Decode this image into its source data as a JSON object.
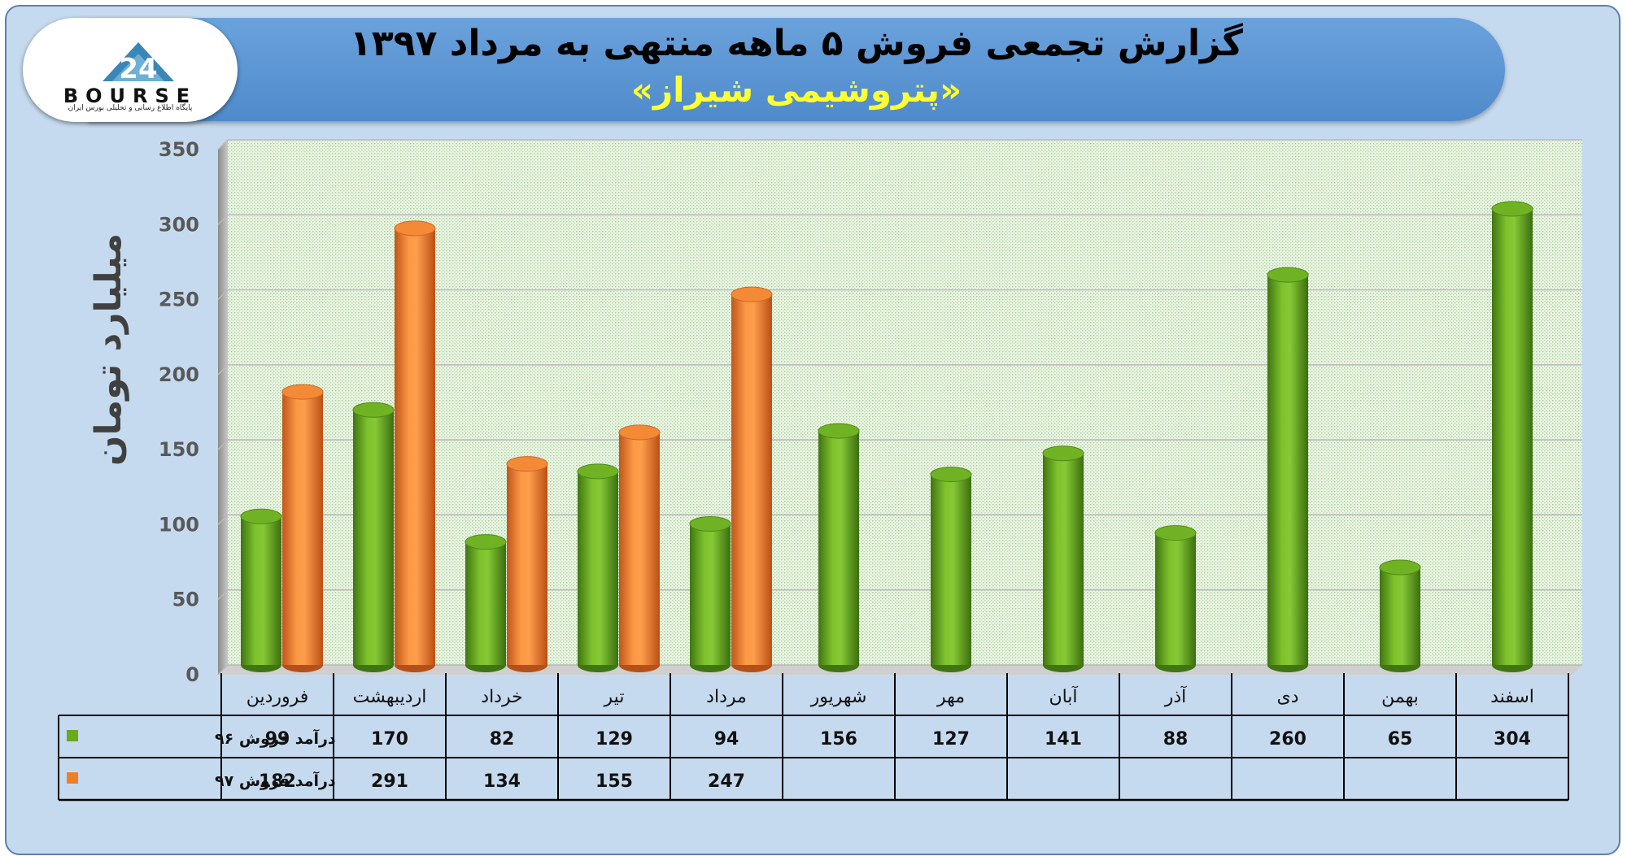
{
  "header": {
    "title": "گزارش تجمعی فروش ۵ ماهه منتهی به مرداد ۱۳۹۷",
    "subtitle": "«پتروشیمی شیراز»"
  },
  "logo": {
    "text": "BOURSE",
    "subtitle": "پایگاه اطلاع رسانی و تحلیلی بورس ایران"
  },
  "colors": {
    "series_96": "#6aaa1e",
    "series_97": "#f07e26",
    "background": "#c6daef",
    "banner": "#5b95d4"
  },
  "chart_data": {
    "type": "bar",
    "title": "گزارش تجمعی فروش ۵ ماهه منتهی به مرداد ۱۳۹۷",
    "subtitle": "«پتروشیمی شیراز»",
    "ylabel": "میلیارد تومان",
    "ylim": [
      0,
      350
    ],
    "yticks": [
      0,
      50,
      100,
      150,
      200,
      250,
      300,
      350
    ],
    "grid": true,
    "legend": "data-table-left",
    "categories": [
      "فروردین",
      "اردیبهشت",
      "خرداد",
      "تیر",
      "مرداد",
      "شهریور",
      "مهر",
      "آبان",
      "آذر",
      "دی",
      "بهمن",
      "اسفند"
    ],
    "series": [
      {
        "name": "درآمد فروش ۹۶",
        "color": "#6aaa1e",
        "values": [
          99,
          170,
          82,
          129,
          94,
          156,
          127,
          141,
          88,
          260,
          65,
          304
        ]
      },
      {
        "name": "درآمد فروش ۹۷",
        "color": "#f07e26",
        "values": [
          182,
          291,
          134,
          155,
          247,
          null,
          null,
          null,
          null,
          null,
          null,
          null
        ]
      }
    ]
  }
}
